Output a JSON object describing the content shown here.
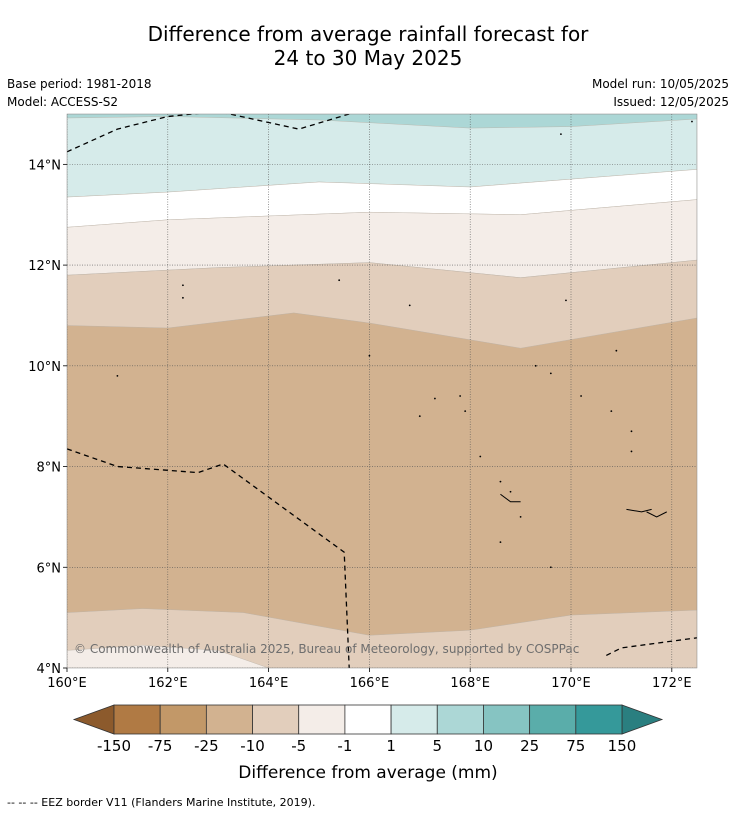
{
  "header": {
    "title_line1": "Difference from average rainfall forecast for",
    "title_line2": "24 to 30 May 2025",
    "base_period": "Base period: 1981-2018",
    "model": "Model: ACCESS-S2",
    "model_run": "Model run: 10/05/2025",
    "issued": "Issued: 12/05/2025"
  },
  "chart_data": {
    "type": "heatmap",
    "x_ticks": [
      "160°E",
      "162°E",
      "164°E",
      "166°E",
      "168°E",
      "170°E",
      "172°E"
    ],
    "y_ticks": [
      "14°N",
      "12°N",
      "10°N",
      "8°N",
      "6°N",
      "4°N"
    ],
    "xlim": [
      160,
      172.5
    ],
    "ylim": [
      4,
      15
    ],
    "grid": true,
    "watermark": "© Commonwealth of Australia 2025, Bureau of Meteorology, supported by COSPPac",
    "colorbar": {
      "label": "Difference from average (mm)",
      "tick_labels": [
        "-150",
        "-75",
        "-25",
        "-10",
        "-5",
        "-1",
        "1",
        "5",
        "10",
        "25",
        "75",
        "150"
      ],
      "colors": [
        "#8c5a2c",
        "#b07a44",
        "#c29868",
        "#d2b290",
        "#e2cebc",
        "#f4ede8",
        "#ffffff",
        "#d6ebea",
        "#acd7d6",
        "#86c4c2",
        "#5aadaa",
        "#35999a",
        "#2a7f80"
      ]
    },
    "contour_bands": [
      {
        "range": "1 to 5",
        "color": "#d6ebea",
        "lat_north": 15.0,
        "lat_south": 13.5
      },
      {
        "range": "-1 to 1",
        "color": "#ffffff",
        "lat_north": 13.5,
        "lat_south": 13.0
      },
      {
        "range": "-5 to -1",
        "color": "#f4ede8",
        "lat_north": 13.0,
        "lat_south": 12.0
      },
      {
        "range": "-10 to -5",
        "color": "#e2cebc",
        "lat_north": 12.0,
        "lat_south": 10.9
      },
      {
        "range": "-25 to -10",
        "color": "#d2b290",
        "lat_north": 10.9,
        "lat_south": 4.9
      },
      {
        "range": "-10 to -5",
        "color": "#e2cebc",
        "lat_north": 4.9,
        "lat_south": 4.3
      },
      {
        "range": "-5 to -1",
        "color": "#f4ede8",
        "lat_north": 4.3,
        "lat_south": 4.0
      },
      {
        "range": "5 to 10",
        "color": "#acd7d6",
        "lat_north": 15.0,
        "lat_south": 14.8
      }
    ]
  },
  "footer": {
    "legend_text": "--  --  -- EEZ border V11 (Flanders Marine Institute, 2019)."
  }
}
